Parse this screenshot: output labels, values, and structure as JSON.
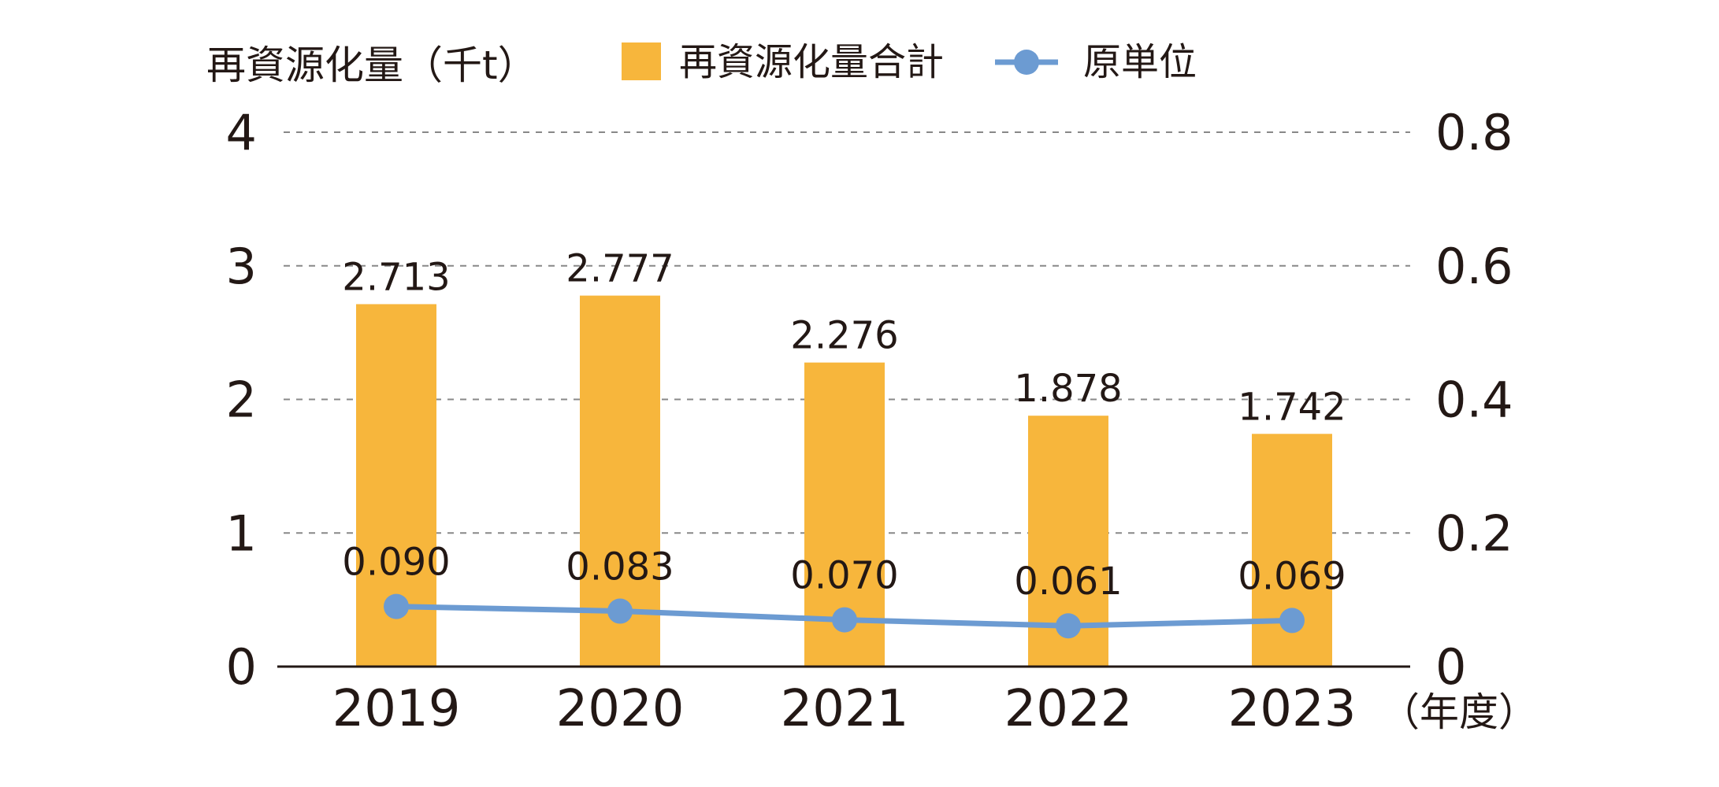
{
  "chart_data": {
    "type": "bar",
    "title": "",
    "categories": [
      "2019",
      "2020",
      "2021",
      "2022",
      "2023"
    ],
    "x_unit_label": "（年度）",
    "y_left": {
      "label": "再資源化量（千t）",
      "ylim": [
        0,
        4
      ],
      "ticks": [
        "0",
        "1",
        "2",
        "3",
        "4"
      ]
    },
    "y_right": {
      "ylim": [
        0,
        0.8
      ],
      "ticks": [
        "0",
        "0.2",
        "0.4",
        "0.6",
        "0.8"
      ]
    },
    "series": [
      {
        "name": "再資源化量合計",
        "kind": "bar",
        "axis": "left",
        "values": [
          2.713,
          2.777,
          2.276,
          1.878,
          1.742
        ],
        "labels": [
          "2.713",
          "2.777",
          "2.276",
          "1.878",
          "1.742"
        ],
        "color": "#F7B63C"
      },
      {
        "name": "原単位",
        "kind": "line",
        "axis": "right",
        "values": [
          0.09,
          0.083,
          0.07,
          0.061,
          0.069
        ],
        "labels": [
          "0.090",
          "0.083",
          "0.070",
          "0.061",
          "0.069"
        ],
        "color": "#6C9BD2"
      }
    ],
    "grid": true,
    "grid_style": "dashed",
    "legend_position": "top"
  },
  "colors": {
    "text": "#231815",
    "grid": "#888888",
    "axis": "#231815"
  }
}
